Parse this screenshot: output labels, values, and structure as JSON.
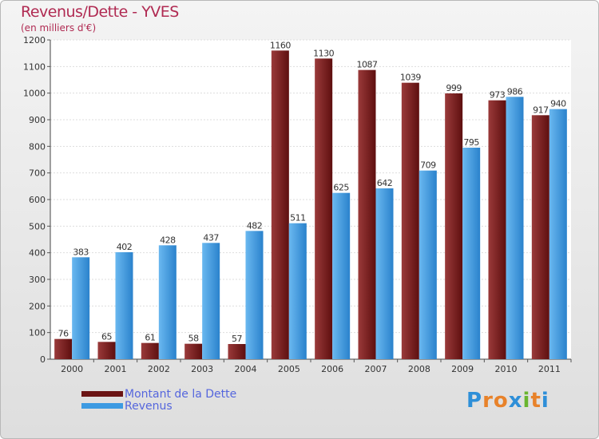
{
  "chart_data": {
    "type": "bar",
    "title": "Revenus/Dette - YVES",
    "subtitle": "(en milliers d'€)",
    "categories": [
      "2000",
      "2001",
      "2002",
      "2003",
      "2004",
      "2005",
      "2006",
      "2007",
      "2008",
      "2009",
      "2010",
      "2011"
    ],
    "series": [
      {
        "name": "Montant de la Dette",
        "color": "#7a1e1e",
        "values": [
          76,
          65,
          61,
          58,
          57,
          1160,
          1130,
          1087,
          1039,
          999,
          973,
          917
        ]
      },
      {
        "name": "Revenus",
        "color": "#3c9ae2",
        "values": [
          383,
          402,
          428,
          437,
          482,
          511,
          625,
          642,
          709,
          795,
          986,
          940
        ]
      }
    ],
    "ylim": [
      0,
      1200
    ],
    "yticks": [
      0,
      100,
      200,
      300,
      400,
      500,
      600,
      700,
      800,
      900,
      1000,
      1100,
      1200
    ],
    "grid": true,
    "legend": "bottom-left"
  },
  "logo": {
    "letters": [
      "P",
      "r",
      "o",
      "x",
      "i",
      "t",
      "i"
    ],
    "colors": [
      "#2e8fd8",
      "#e8822a",
      "#e8822a",
      "#2e8fd8",
      "#69b52f",
      "#e8822a",
      "#2e8fd8"
    ]
  }
}
